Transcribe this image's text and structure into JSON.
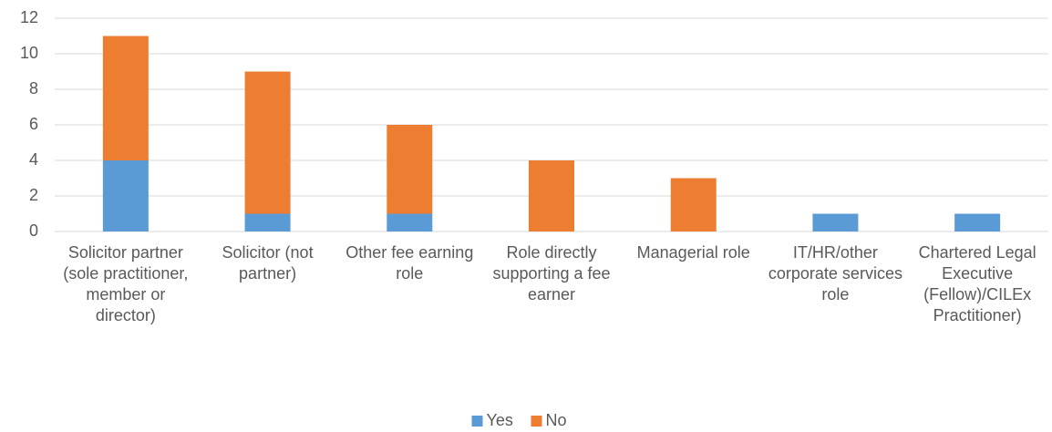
{
  "chart_data": {
    "type": "stacked_bar",
    "categories": [
      "Solicitor partner (sole practitioner, member or director)",
      "Solicitor (not partner)",
      "Other fee earning role",
      "Role directly supporting a fee earner",
      "Managerial role",
      "IT/HR/other corporate services role",
      "Chartered Legal Executive (Fellow)/CILEx Practitioner)"
    ],
    "series": [
      {
        "name": "Yes",
        "color": "#5b9bd5",
        "values": [
          4,
          1,
          1,
          0,
          0,
          1,
          1
        ]
      },
      {
        "name": "No",
        "color": "#ed7d31",
        "values": [
          7,
          8,
          5,
          4,
          3,
          0,
          0
        ]
      }
    ],
    "ylim": [
      0,
      12
    ],
    "yticks": [
      0,
      2,
      4,
      6,
      8,
      10,
      12
    ],
    "grid": true,
    "legend": "bottom"
  }
}
